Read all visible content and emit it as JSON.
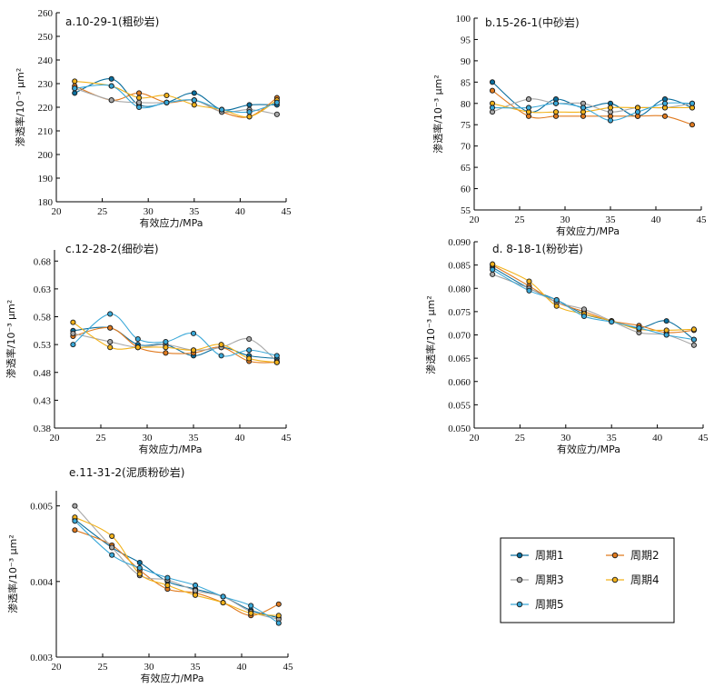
{
  "legend": {
    "items": [
      {
        "name": "周期1",
        "color": "#0a6e9e"
      },
      {
        "name": "周期2",
        "color": "#e07a1f"
      },
      {
        "name": "周期3",
        "color": "#a8a8a8"
      },
      {
        "name": "周期4",
        "color": "#f2b21b"
      },
      {
        "name": "周期5",
        "color": "#3aa8d8"
      }
    ]
  },
  "chart_data": [
    {
      "type": "line",
      "title": "a.10-29-1(粗砂岩)",
      "xlabel": "有效应力/MPa",
      "ylabel": "渗透率/10⁻³ μm²",
      "xlim": [
        20,
        45
      ],
      "ylim": [
        180,
        260
      ],
      "xticks": [
        "20",
        "25",
        "30",
        "35",
        "40",
        "45"
      ],
      "yticks": [
        "180",
        "190",
        "200",
        "210",
        "220",
        "230",
        "240",
        "250",
        "260"
      ],
      "x": [
        22,
        26,
        29,
        32,
        35,
        38,
        41,
        44
      ],
      "series": [
        {
          "name": "周期1",
          "values": [
            226,
            232,
            221,
            222,
            226,
            219,
            221,
            221
          ]
        },
        {
          "name": "周期2",
          "values": [
            229,
            223,
            226,
            222,
            223,
            218,
            216,
            224
          ]
        },
        {
          "name": "周期3",
          "values": [
            228,
            223,
            222,
            222,
            223,
            218,
            219,
            217
          ]
        },
        {
          "name": "周期4",
          "values": [
            231,
            229,
            224,
            225,
            221,
            219,
            216,
            223
          ]
        },
        {
          "name": "周期5",
          "values": [
            228,
            229,
            220,
            222,
            223,
            219,
            218,
            222
          ]
        }
      ]
    },
    {
      "type": "line",
      "title": "b.15-26-1(中砂岩)",
      "xlabel": "有效应力/MPa",
      "ylabel": "渗透率/10⁻³ μm²",
      "xlim": [
        20,
        45
      ],
      "ylim": [
        55,
        100
      ],
      "xticks": [
        "20",
        "25",
        "30",
        "35",
        "40",
        "45"
      ],
      "yticks": [
        "55",
        "60",
        "65",
        "70",
        "75",
        "80",
        "85",
        "90",
        "95",
        "100"
      ],
      "x": [
        22,
        26,
        29,
        32,
        35,
        38,
        41,
        44
      ],
      "series": [
        {
          "name": "周期1",
          "values": [
            85,
            78,
            81,
            79,
            80,
            77,
            81,
            79
          ]
        },
        {
          "name": "周期2",
          "values": [
            83,
            77,
            77,
            77,
            77,
            77,
            77,
            75
          ]
        },
        {
          "name": "周期3",
          "values": [
            78,
            81,
            80,
            80,
            78,
            79,
            79,
            80
          ]
        },
        {
          "name": "周期4",
          "values": [
            80,
            78,
            78,
            78,
            79,
            79,
            79,
            79
          ]
        },
        {
          "name": "周期5",
          "values": [
            79,
            79,
            80,
            79,
            76,
            78,
            80,
            80
          ]
        }
      ]
    },
    {
      "type": "line",
      "title": "c.12-28-2(细砂岩)",
      "xlabel": "有效应力/MPa",
      "ylabel": "渗透率/10⁻³ μm²",
      "xlim": [
        20,
        45
      ],
      "ylim": [
        0.38,
        0.7
      ],
      "xticks": [
        "20",
        "25",
        "30",
        "35",
        "40",
        "45"
      ],
      "yticks": [
        "0.38",
        "0.43",
        "0.48",
        "0.53",
        "0.58",
        "0.63",
        "0.68"
      ],
      "x": [
        22,
        26,
        29,
        32,
        35,
        38,
        41,
        44
      ],
      "series": [
        {
          "name": "周期1",
          "values": [
            0.555,
            0.56,
            0.53,
            0.53,
            0.51,
            0.525,
            0.51,
            0.505
          ]
        },
        {
          "name": "周期2",
          "values": [
            0.545,
            0.56,
            0.525,
            0.515,
            0.515,
            0.525,
            0.5,
            0.498
          ]
        },
        {
          "name": "周期3",
          "values": [
            0.55,
            0.535,
            0.525,
            0.53,
            0.52,
            0.525,
            0.54,
            0.5
          ]
        },
        {
          "name": "周期4",
          "values": [
            0.57,
            0.525,
            0.525,
            0.525,
            0.52,
            0.53,
            0.505,
            0.498
          ]
        },
        {
          "name": "周期5",
          "values": [
            0.53,
            0.585,
            0.54,
            0.535,
            0.55,
            0.51,
            0.52,
            0.51
          ]
        }
      ]
    },
    {
      "type": "line",
      "title": "d. 8-18-1(粉砂岩)",
      "xlabel": "有效应力/MPa",
      "ylabel": "渗透率/10⁻³ μm²",
      "xlim": [
        20,
        45
      ],
      "ylim": [
        0.05,
        0.09
      ],
      "xticks": [
        "20",
        "25",
        "30",
        "35",
        "40",
        "45"
      ],
      "yticks": [
        "0.050",
        "0.055",
        "0.060",
        "0.065",
        "0.070",
        "0.075",
        "0.080",
        "0.085",
        "0.090"
      ],
      "x": [
        22,
        26,
        29,
        32,
        35,
        38,
        41,
        44
      ],
      "series": [
        {
          "name": "周期1",
          "values": [
            0.0845,
            0.08,
            0.0775,
            0.0745,
            0.073,
            0.0715,
            0.073,
            0.069
          ]
        },
        {
          "name": "周期2",
          "values": [
            0.085,
            0.0805,
            0.077,
            0.075,
            0.073,
            0.072,
            0.0705,
            0.071
          ]
        },
        {
          "name": "周期3",
          "values": [
            0.083,
            0.08,
            0.077,
            0.0755,
            0.073,
            0.0705,
            0.07,
            0.0678
          ]
        },
        {
          "name": "周期4",
          "values": [
            0.0852,
            0.0815,
            0.0762,
            0.0745,
            0.073,
            0.0712,
            0.071,
            0.0712
          ]
        },
        {
          "name": "周期5",
          "values": [
            0.084,
            0.0795,
            0.0775,
            0.074,
            0.0728,
            0.0715,
            0.07,
            0.069
          ]
        }
      ]
    },
    {
      "type": "line",
      "title": "e.11-31-2(泥质粉砂岩)",
      "xlabel": "有效应力/MPa",
      "ylabel": "渗透率/10⁻³ μm²",
      "xlim": [
        20,
        45
      ],
      "ylim": [
        0.003,
        0.0052
      ],
      "xticks": [
        "20",
        "25",
        "30",
        "35",
        "40",
        "45"
      ],
      "yticks": [
        "0.003",
        "0.004",
        "0.005"
      ],
      "x": [
        22,
        26,
        29,
        32,
        35,
        38,
        41,
        44
      ],
      "series": [
        {
          "name": "周期1",
          "values": [
            0.00482,
            0.00445,
            0.00425,
            0.004,
            0.0039,
            0.0038,
            0.00362,
            0.00352
          ]
        },
        {
          "name": "周期2",
          "values": [
            0.00468,
            0.00448,
            0.00415,
            0.0039,
            0.00385,
            0.00372,
            0.00355,
            0.0037
          ]
        },
        {
          "name": "周期3",
          "values": [
            0.005,
            0.00445,
            0.00408,
            0.00402,
            0.00388,
            0.0038,
            0.0036,
            0.0035
          ]
        },
        {
          "name": "周期4",
          "values": [
            0.00485,
            0.0046,
            0.0041,
            0.00395,
            0.00382,
            0.00372,
            0.00358,
            0.00355
          ]
        },
        {
          "name": "周期5",
          "values": [
            0.0048,
            0.00435,
            0.00418,
            0.00405,
            0.00395,
            0.0038,
            0.00368,
            0.00345
          ]
        }
      ]
    }
  ]
}
